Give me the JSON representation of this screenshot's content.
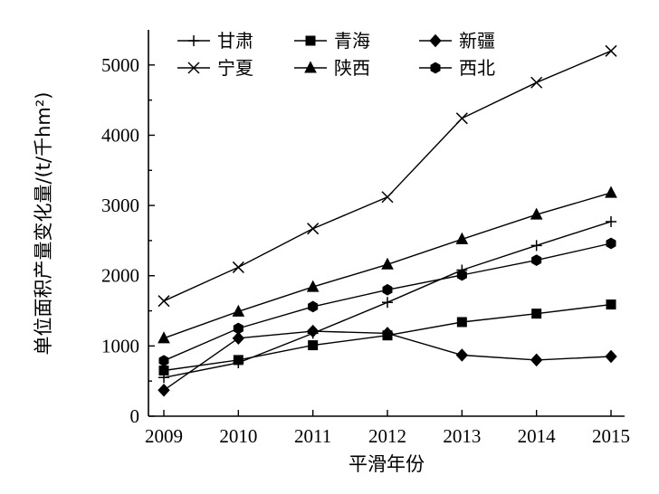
{
  "chart_data": {
    "type": "line",
    "xlabel": "平滑年份",
    "ylabel": "单位面积产量变化量/(t/千hm²)",
    "x": [
      2009,
      2010,
      2011,
      2012,
      2013,
      2014,
      2015
    ],
    "ylim": [
      0,
      5500
    ],
    "yticks": [
      0,
      1000,
      2000,
      3000,
      4000,
      5000
    ],
    "grid": false,
    "legend_position": "top-left",
    "series": [
      {
        "name": "甘肃",
        "marker": "plus",
        "values": [
          550,
          760,
          1180,
          1620,
          2080,
          2430,
          2770
        ]
      },
      {
        "name": "青海",
        "marker": "square",
        "values": [
          650,
          800,
          1010,
          1150,
          1340,
          1460,
          1590
        ]
      },
      {
        "name": "新疆",
        "marker": "diamond",
        "values": [
          370,
          1110,
          1210,
          1180,
          870,
          800,
          850
        ]
      },
      {
        "name": "宁夏",
        "marker": "cross",
        "values": [
          1640,
          2120,
          2670,
          3120,
          4240,
          4750,
          5200
        ]
      },
      {
        "name": "陕西",
        "marker": "triangle",
        "values": [
          1110,
          1490,
          1840,
          2160,
          2520,
          2870,
          3180
        ]
      },
      {
        "name": "西北",
        "marker": "hexagon",
        "values": [
          790,
          1250,
          1560,
          1800,
          2010,
          2220,
          2460
        ]
      }
    ]
  }
}
